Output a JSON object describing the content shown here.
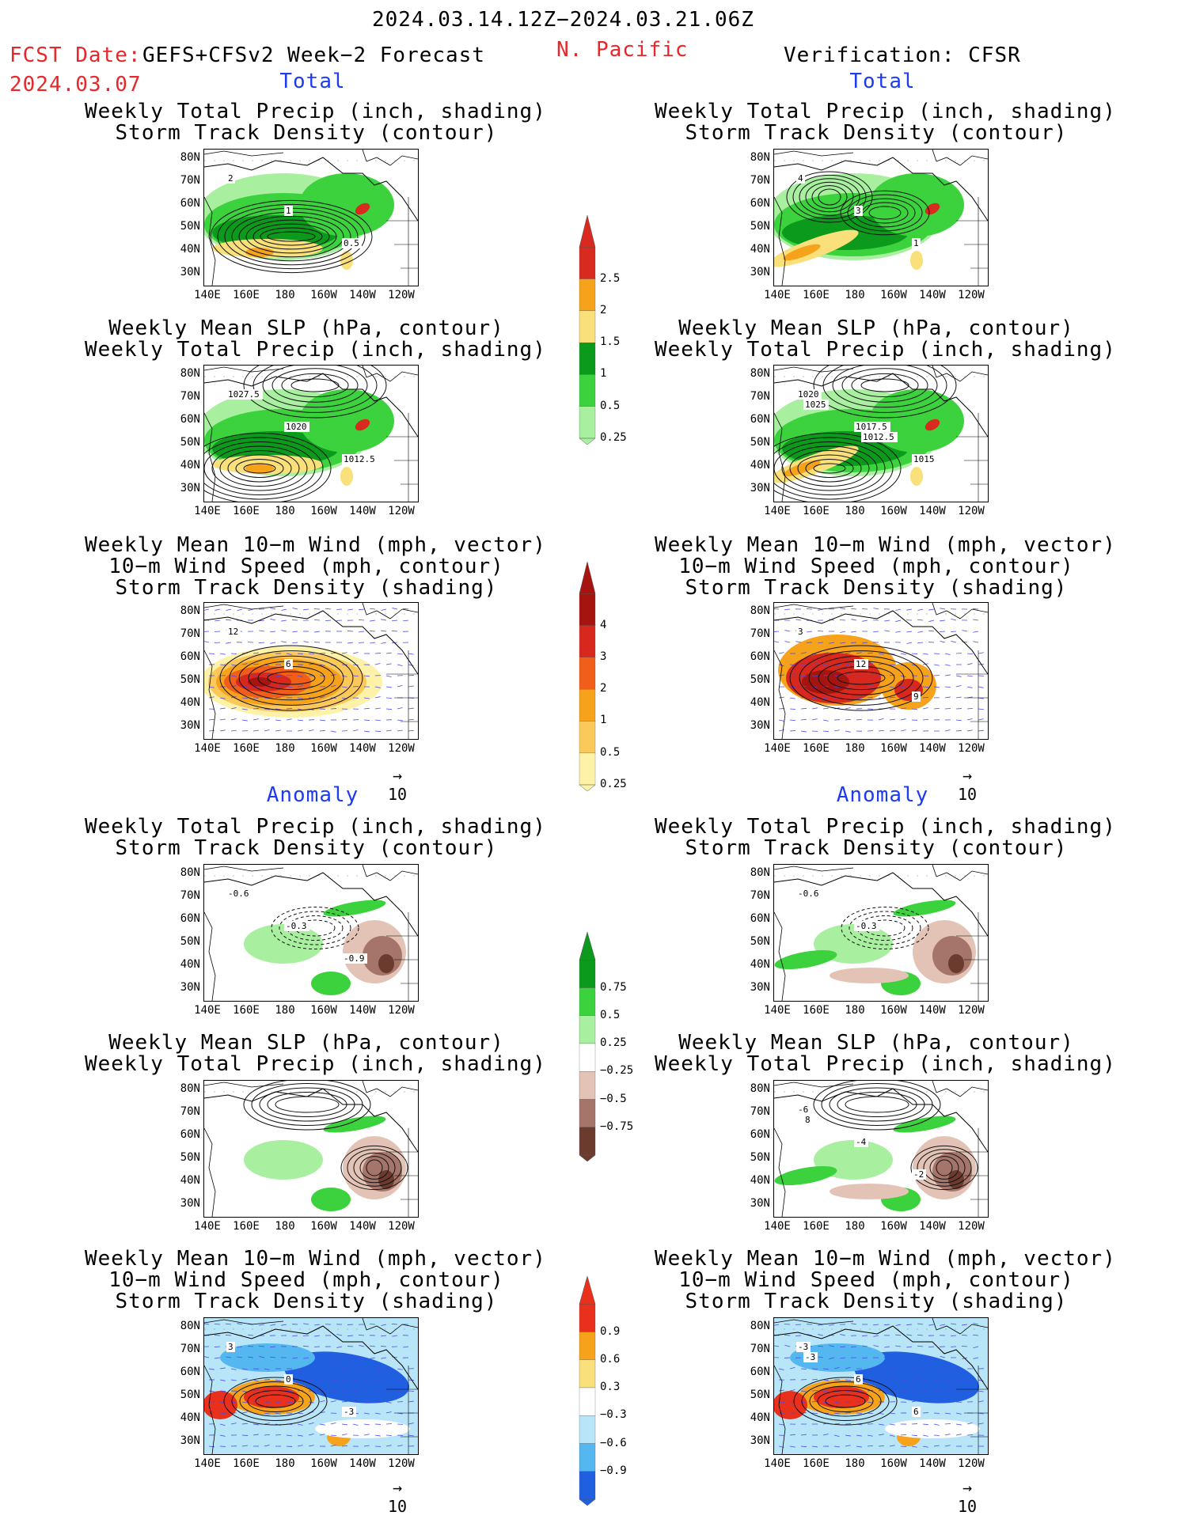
{
  "header": {
    "period": "2024.03.14.12Z−2024.03.21.06Z",
    "fcst_label": "FCST Date:",
    "fcst_model": "GEFS+CFSv2 Week−2 Forecast",
    "fcst_date": "2024.03.07",
    "region": "N. Pacific",
    "verification": "Verification: CFSR"
  },
  "sections": {
    "total": "Total",
    "anomaly": "Anomaly"
  },
  "titles": {
    "precip_track": "Weekly Total Precip (inch, shading)\nStorm Track Density (contour)",
    "slp_precip": "Weekly Mean SLP (hPa, contour)\nWeekly Total Precip (inch, shading)",
    "wind_track": "Weekly Mean 10−m Wind (mph, vector)\n10−m Wind Speed (mph, contour)\nStorm Track Density (shading)"
  },
  "axes": {
    "lat": [
      "80N",
      "70N",
      "60N",
      "50N",
      "40N",
      "30N"
    ],
    "lon": [
      "140E",
      "160E",
      "180",
      "160W",
      "140W",
      "120W"
    ]
  },
  "vector_ref": "10",
  "colorbars": {
    "precip_total": {
      "labels": [
        "2.5",
        "2",
        "1.5",
        "1",
        "0.5",
        "0.25"
      ],
      "colors": [
        "#d82a1e",
        "#f6a21a",
        "#f9e07a",
        "#0b9a1b",
        "#3cd23d",
        "#a8efa0"
      ]
    },
    "track_total": {
      "labels": [
        "4",
        "3",
        "2",
        "1",
        "0.5",
        "0.25"
      ],
      "colors": [
        "#a6140f",
        "#d8281d",
        "#f05e1a",
        "#f6a21a",
        "#fbc95a",
        "#fdf2a8"
      ]
    },
    "precip_anom": {
      "labels": [
        "0.75",
        "0.5",
        "0.25",
        "−0.25",
        "−0.5",
        "−0.75"
      ],
      "colors": [
        "#0b9a1b",
        "#3cd23d",
        "#a8efa0",
        "#ffffff",
        "#e3c3b6",
        "#a6756a",
        "#6b3b2e"
      ]
    },
    "track_anom": {
      "labels": [
        "0.9",
        "0.6",
        "0.3",
        "−0.3",
        "−0.6",
        "−0.9"
      ],
      "colors": [
        "#e8301c",
        "#f6a21a",
        "#f9e07a",
        "#ffffff",
        "#b8e6f8",
        "#55b7f0",
        "#1f5fe0"
      ]
    }
  },
  "panels": {
    "fcst_precip_total": [
      "2",
      "1",
      "0.5"
    ],
    "obs_precip_total": [
      "4",
      "3",
      "1"
    ],
    "fcst_slp_total": [
      "1027.5",
      "1020",
      "1012.5"
    ],
    "obs_slp_total": [
      "1020",
      "1017.5",
      "1015",
      "1025",
      "1012.5"
    ],
    "fcst_wind_total": [
      "12",
      "6"
    ],
    "obs_wind_total": [
      "3",
      "12",
      "9"
    ],
    "fcst_precip_anom": [
      "-0.6",
      "-0.3",
      "-0.9"
    ],
    "obs_precip_anom": [
      "-0.6",
      "-0.3"
    ],
    "obs_slp_anom": [
      "-6",
      "-4",
      "-2",
      "8"
    ],
    "fcst_wind_anom": [
      "3",
      "0",
      "-3"
    ],
    "obs_wind_anom": [
      "-3",
      "6",
      "6",
      "-3"
    ]
  }
}
